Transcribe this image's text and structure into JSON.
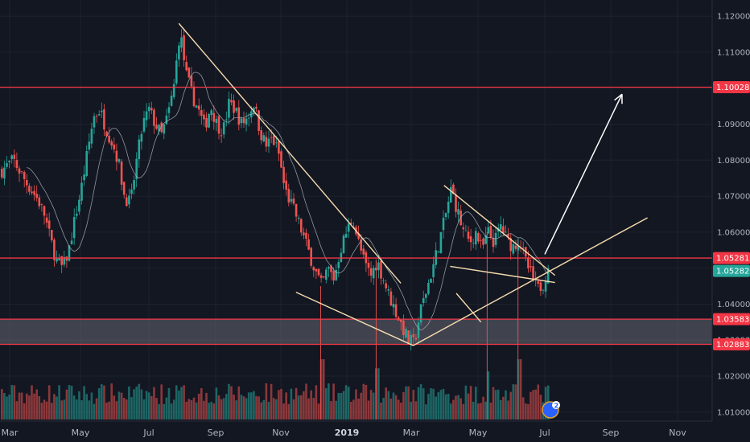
{
  "chart_data": {
    "type": "candlestick",
    "x_ticks": [
      "Mar",
      "May",
      "Jul",
      "Sep",
      "Nov",
      "2019",
      "Mar",
      "May",
      "Jul",
      "Sep",
      "Nov"
    ],
    "x_tick_bold": [
      false,
      false,
      false,
      false,
      false,
      true,
      false,
      false,
      false,
      false,
      false
    ],
    "y_ticks": [
      "1.12000",
      "1.11000",
      "1.10000",
      "1.09000",
      "1.08000",
      "1.07000",
      "1.06000",
      "1.05000",
      "1.04000",
      "1.03000",
      "1.02000",
      "1.01000"
    ],
    "y_tick_values": [
      1.12,
      1.11,
      1.1,
      1.09,
      1.08,
      1.07,
      1.06,
      1.05,
      1.04,
      1.03,
      1.02,
      1.01
    ],
    "ylim": [
      1.0075,
      1.1245
    ],
    "price_labels": [
      {
        "text": "1.10028",
        "value": 1.10028,
        "color": "#f23645",
        "kind": "level"
      },
      {
        "text": "1.05281",
        "value": 1.05281,
        "color": "#f23645",
        "kind": "level"
      },
      {
        "text": "1.05282",
        "value": 1.05282,
        "color": "#26a69a",
        "kind": "last"
      },
      {
        "text": "1.03583",
        "value": 1.03583,
        "color": "#f23645",
        "kind": "level"
      },
      {
        "text": "1.02883",
        "value": 1.02883,
        "color": "#f23645",
        "kind": "level"
      }
    ],
    "support_zone": [
      1.02883,
      1.03583
    ],
    "price_path": [
      [
        0,
        1.077
      ],
      [
        2,
        1.08
      ],
      [
        4,
        1.074
      ],
      [
        6,
        1.069
      ],
      [
        7,
        1.065
      ],
      [
        8,
        1.058
      ],
      [
        9,
        1.052
      ],
      [
        10,
        1.05
      ],
      [
        11,
        1.055
      ],
      [
        12,
        1.064
      ],
      [
        13,
        1.072
      ],
      [
        14,
        1.082
      ],
      [
        15,
        1.092
      ],
      [
        16,
        1.094
      ],
      [
        17,
        1.089
      ],
      [
        18,
        1.085
      ],
      [
        19,
        1.08
      ],
      [
        20,
        1.07
      ],
      [
        21,
        1.068
      ],
      [
        22,
        1.08
      ],
      [
        23,
        1.09
      ],
      [
        24,
        1.094
      ],
      [
        25,
        1.09
      ],
      [
        26,
        1.087
      ],
      [
        27,
        1.092
      ],
      [
        28,
        1.1
      ],
      [
        29,
        1.116
      ],
      [
        30,
        1.104
      ],
      [
        31,
        1.098
      ],
      [
        32,
        1.094
      ],
      [
        33,
        1.089
      ],
      [
        34,
        1.095
      ],
      [
        35,
        1.09
      ],
      [
        36,
        1.088
      ],
      [
        37,
        1.096
      ],
      [
        38,
        1.094
      ],
      [
        39,
        1.09
      ],
      [
        40,
        1.092
      ],
      [
        41,
        1.096
      ],
      [
        42,
        1.088
      ],
      [
        43,
        1.084
      ],
      [
        44,
        1.086
      ],
      [
        45,
        1.082
      ],
      [
        46,
        1.072
      ],
      [
        47,
        1.068
      ],
      [
        48,
        1.064
      ],
      [
        49,
        1.059
      ],
      [
        50,
        1.054
      ],
      [
        51,
        1.049
      ],
      [
        52,
        1.045
      ],
      [
        53,
        1.05
      ],
      [
        54,
        1.047
      ],
      [
        55,
        1.055
      ],
      [
        56,
        1.06
      ],
      [
        57,
        1.064
      ],
      [
        58,
        1.057
      ],
      [
        59,
        1.051
      ],
      [
        60,
        1.048
      ],
      [
        61,
        1.052
      ],
      [
        62,
        1.047
      ],
      [
        63,
        1.042
      ],
      [
        64,
        1.038
      ],
      [
        65,
        1.034
      ],
      [
        66,
        1.03
      ],
      [
        67,
        1.029
      ],
      [
        68,
        1.038
      ],
      [
        69,
        1.044
      ],
      [
        70,
        1.05
      ],
      [
        71,
        1.057
      ],
      [
        72,
        1.064
      ],
      [
        73,
        1.072
      ],
      [
        74,
        1.066
      ],
      [
        75,
        1.06
      ],
      [
        76,
        1.057
      ],
      [
        77,
        1.06
      ],
      [
        78,
        1.055
      ],
      [
        79,
        1.06
      ],
      [
        80,
        1.057
      ],
      [
        81,
        1.062
      ],
      [
        82,
        1.058
      ],
      [
        83,
        1.056
      ],
      [
        84,
        1.058
      ],
      [
        85,
        1.052
      ],
      [
        86,
        1.048
      ],
      [
        87,
        1.044
      ],
      [
        88,
        1.046
      ],
      [
        89,
        1.053
      ]
    ],
    "volume_spikes": [
      [
        52,
        1.0
      ],
      [
        61,
        0.85
      ],
      [
        79,
        0.8
      ],
      [
        84,
        1.0
      ],
      [
        43,
        0.6
      ],
      [
        66,
        0.55
      ]
    ],
    "annotations": {
      "red_levels": [
        1.10028,
        1.05281,
        1.03583,
        1.02883
      ],
      "cream_lines": [
        [
          [
            29,
            1.118
          ],
          [
            65,
            1.0458
          ]
        ],
        [
          [
            48,
            1.0433
          ],
          [
            67,
            1.0285
          ]
        ],
        [
          [
            67,
            1.0285
          ],
          [
            105,
            1.064
          ]
        ],
        [
          [
            72,
            1.073
          ],
          [
            90,
            1.048
          ]
        ],
        [
          [
            73,
            1.0505
          ],
          [
            90,
            1.046
          ]
        ],
        [
          [
            78,
            1.035
          ],
          [
            74,
            1.043
          ]
        ]
      ],
      "arrow": [
        [
          86,
          1.0525
        ],
        [
          95,
          1.099
        ]
      ]
    }
  }
}
